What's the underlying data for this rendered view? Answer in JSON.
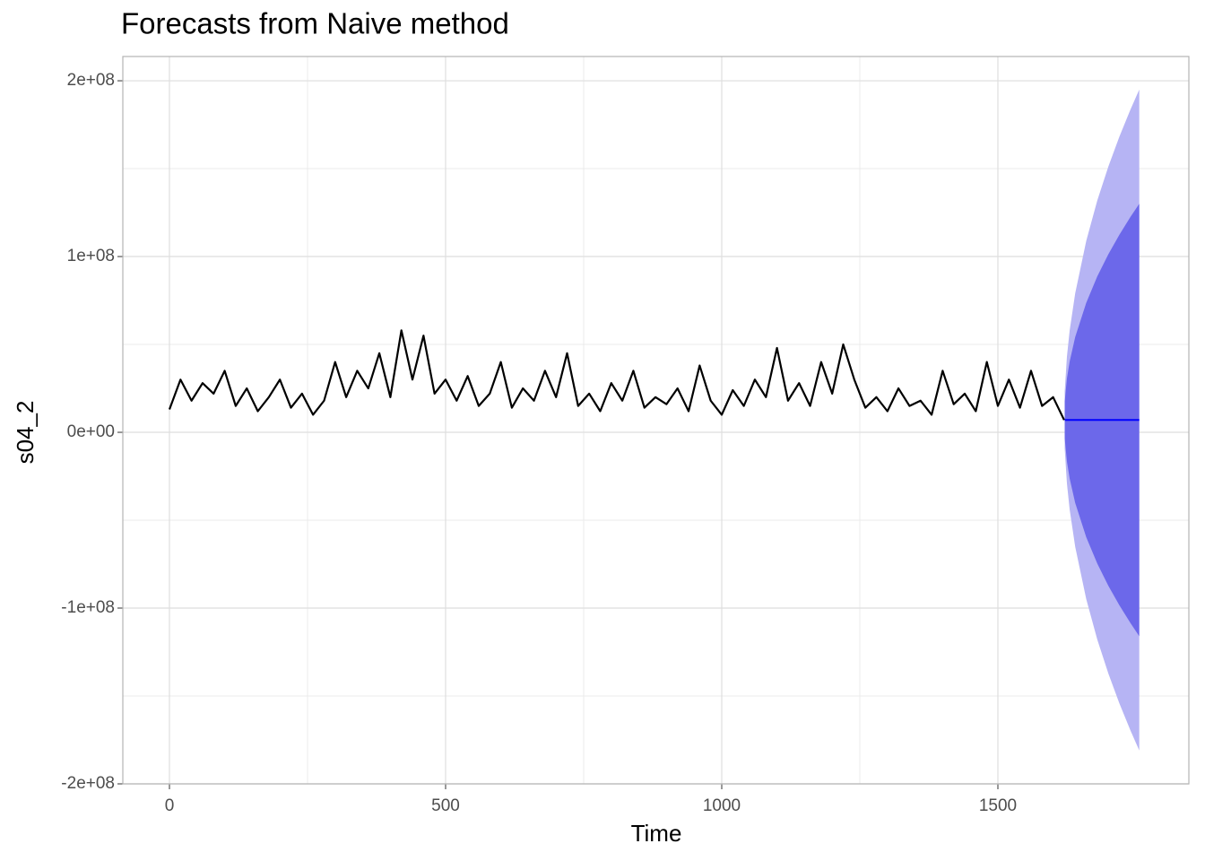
{
  "chart_data": {
    "type": "line",
    "title": "Forecasts from Naive method",
    "x_label": "Time",
    "y_label": "s04_2",
    "xlim": [
      -84.4,
      1845.8
    ],
    "ylim": [
      -200000000.0,
      213800000.0
    ],
    "xticks": [
      0,
      500,
      1000,
      1500
    ],
    "yticks": [
      {
        "value": -200000000.0,
        "label": "-2e+08"
      },
      {
        "value": -100000000.0,
        "label": "-1e+08"
      },
      {
        "value": 0,
        "label": "0e+00"
      },
      {
        "value": 100000000.0,
        "label": "1e+08"
      },
      {
        "value": 200000000.0,
        "label": "2e+08"
      }
    ],
    "grid": true,
    "color": "#000000",
    "x": [
      0,
      20,
      40,
      60,
      80,
      100,
      120,
      140,
      160,
      180,
      200,
      220,
      240,
      260,
      280,
      300,
      320,
      340,
      360,
      380,
      400,
      420,
      440,
      460,
      480,
      500,
      520,
      540,
      560,
      580,
      600,
      620,
      640,
      660,
      680,
      700,
      720,
      740,
      760,
      780,
      800,
      820,
      840,
      860,
      880,
      900,
      920,
      940,
      960,
      980,
      1000,
      1020,
      1040,
      1060,
      1080,
      1100,
      1120,
      1140,
      1160,
      1180,
      1200,
      1220,
      1240,
      1260,
      1280,
      1300,
      1320,
      1340,
      1360,
      1380,
      1400,
      1420,
      1440,
      1460,
      1480,
      1500,
      1520,
      1540,
      1560,
      1580,
      1600,
      1620
    ],
    "values": [
      13000000.0,
      30000000.0,
      18000000.0,
      28000000.0,
      22000000.0,
      35000000.0,
      15000000.0,
      25000000.0,
      12000000.0,
      20000000.0,
      30000000.0,
      14000000.0,
      22000000.0,
      10000000.0,
      18000000.0,
      40000000.0,
      20000000.0,
      35000000.0,
      25000000.0,
      45000000.0,
      20000000.0,
      58000000.0,
      30000000.0,
      55000000.0,
      22000000.0,
      30000000.0,
      18000000.0,
      32000000.0,
      15000000.0,
      22000000.0,
      40000000.0,
      14000000.0,
      25000000.0,
      18000000.0,
      35000000.0,
      20000000.0,
      45000000.0,
      15000000.0,
      22000000.0,
      12000000.0,
      28000000.0,
      18000000.0,
      35000000.0,
      14000000.0,
      20000000.0,
      16000000.0,
      25000000.0,
      12000000.0,
      38000000.0,
      18000000.0,
      10000000.0,
      24000000.0,
      15000000.0,
      30000000.0,
      20000000.0,
      48000000.0,
      18000000.0,
      28000000.0,
      15000000.0,
      40000000.0,
      22000000.0,
      50000000.0,
      30000000.0,
      14000000.0,
      20000000.0,
      12000000.0,
      25000000.0,
      15000000.0,
      18000000.0,
      10000000.0,
      35000000.0,
      16000000.0,
      22000000.0,
      12000000.0,
      40000000.0,
      15000000.0,
      30000000.0,
      14000000.0,
      35000000.0,
      15000000.0,
      20000000.0,
      7000000.0
    ],
    "forecast": {
      "color": "#0000ff",
      "color_80": "#6c68ea",
      "color_95": "#b6b4f4",
      "x": [
        1621,
        1625,
        1630,
        1640,
        1660,
        1680,
        1700,
        1720,
        1740,
        1756
      ],
      "values": [
        7000000.0,
        7000000.0,
        7000000.0,
        7000000.0,
        7000000.0,
        7000000.0,
        7000000.0,
        7000000.0,
        7000000.0,
        7000000.0
      ],
      "lower_80": [
        -3500000.0,
        -16600000.0,
        -26300000.0,
        -40200000.0,
        -59700000.0,
        -74700000.0,
        -87300000.0,
        -98400000.0,
        -108500000.0,
        -116000000.0
      ],
      "upper_80": [
        17500000.0,
        30600000.0,
        40300000.0,
        54200000.0,
        73700000.0,
        88700000.0,
        101300000.0,
        112400000.0,
        122500000.0,
        130000000.0
      ],
      "lower_95": [
        -9100000.0,
        -29000000.0,
        -44000000.0,
        -65100000.0,
        -94900000.0,
        -117900000.0,
        -137200000.0,
        -154200000.0,
        -169600000.0,
        -181000000.0
      ],
      "upper_95": [
        23100000.0,
        43000000.0,
        58000000.0,
        79100000.0,
        108900000.0,
        131900000.0,
        151200000.0,
        168200000.0,
        183600000.0,
        195000000.0
      ]
    }
  }
}
